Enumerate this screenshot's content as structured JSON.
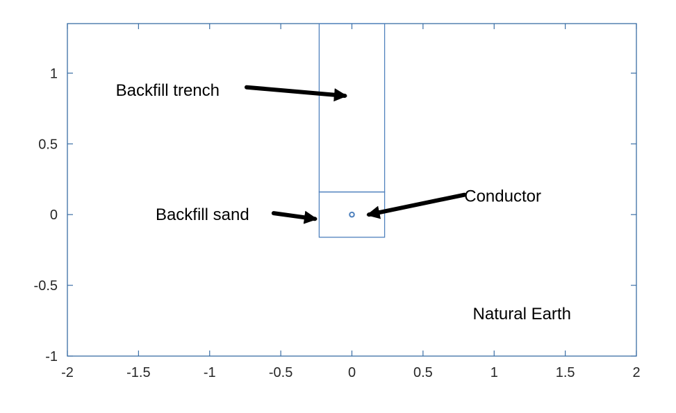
{
  "chart_data": {
    "type": "diagram",
    "title": "",
    "xlabel": "",
    "ylabel": "",
    "xlim": [
      -2,
      2
    ],
    "ylim": [
      -1,
      1.35
    ],
    "xticks": [
      -2,
      -1.5,
      -1,
      -0.5,
      0,
      0.5,
      1,
      1.5,
      2
    ],
    "xtick_labels": [
      "-2",
      "-1.5",
      "-1",
      "-0.5",
      "0",
      "0.5",
      "1",
      "1.5",
      "2"
    ],
    "yticks": [
      -1,
      -0.5,
      0,
      0.5,
      1
    ],
    "ytick_labels": [
      "-1",
      "-0.5",
      "0",
      "0.5",
      "1"
    ],
    "grid": false,
    "line_color": "#4f81bd",
    "axes_color": "#3a6ea5",
    "regions": [
      {
        "name": "backfill-trench",
        "x": [
          -0.23,
          0.23
        ],
        "y": [
          0.16,
          1.35
        ]
      },
      {
        "name": "backfill-sand",
        "x": [
          -0.23,
          0.23
        ],
        "y": [
          -0.16,
          0.16
        ]
      }
    ],
    "conductor": {
      "x": 0,
      "y": 0,
      "radius": 0.016
    },
    "annotations": [
      {
        "name": "backfill-trench-label",
        "text": "Backfill trench",
        "x": -1.66,
        "y": 0.88,
        "anchor": "start",
        "arrow_from": [
          -0.74,
          0.9
        ],
        "arrow_to": [
          -0.05,
          0.84
        ]
      },
      {
        "name": "backfill-sand-label",
        "text": "Backfill sand",
        "x": -1.38,
        "y": 0.0,
        "anchor": "start",
        "arrow_from": [
          -0.55,
          0.01
        ],
        "arrow_to": [
          -0.26,
          -0.03
        ]
      },
      {
        "name": "conductor-label",
        "text": "Conductor",
        "x": 0.79,
        "y": 0.13,
        "anchor": "start",
        "arrow_from": [
          0.79,
          0.14
        ],
        "arrow_to": [
          0.12,
          0.0
        ]
      },
      {
        "name": "natural-earth-label",
        "text": "Natural Earth",
        "x": 0.85,
        "y": -0.7,
        "anchor": "start"
      }
    ]
  }
}
